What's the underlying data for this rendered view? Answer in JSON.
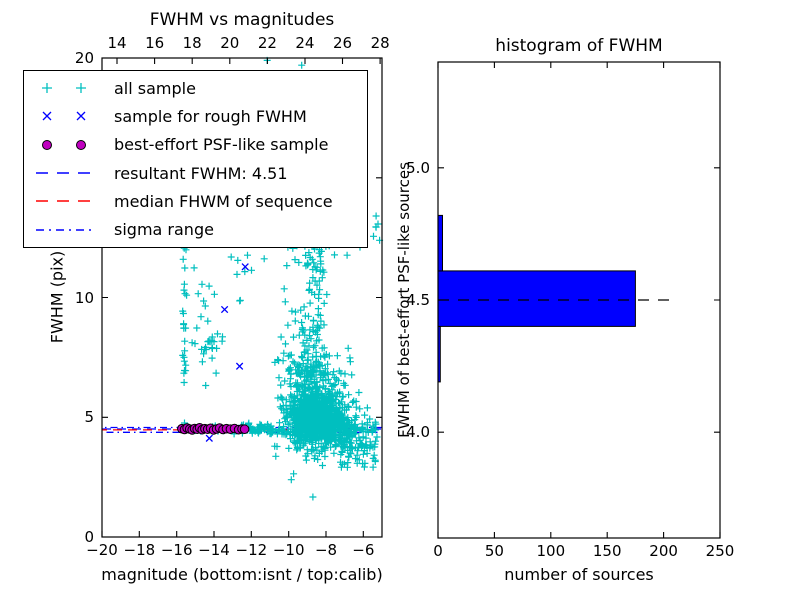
{
  "figure": {
    "background": "#ffffff"
  },
  "colors": {
    "all_sample": "#00bfbf",
    "rough_sample": "#0000ff",
    "psf_sample_fill": "#bf00bf",
    "psf_sample_edge": "#000000",
    "resultant_line": "#0000ff",
    "median_line": "#ff0000",
    "sigma_line": "#0000ff",
    "hist_fill": "#0000ff",
    "hist_edge": "#000000",
    "hist_median_line": "#000000",
    "axis": "#000000"
  },
  "left_plot": {
    "title": "FWHM vs magnitudes",
    "xlabel": "magnitude (bottom:isnt / top:calib)",
    "ylabel": "FWHM (pix)",
    "x_tick_labels": [
      "−20",
      "−18",
      "−16",
      "−14",
      "−12",
      "−10",
      "−8",
      "−6"
    ],
    "y_tick_labels": [
      "0",
      "5",
      "10",
      "15",
      "20"
    ],
    "top_tick_labels": [
      "14",
      "16",
      "18",
      "20",
      "22",
      "24",
      "26",
      "28"
    ]
  },
  "right_plot": {
    "title": "histogram of FWHM",
    "xlabel": "number of sources",
    "ylabel": "FWHM of best-effort PSF-like sources",
    "x_tick_labels": [
      "0",
      "50",
      "100",
      "150",
      "200",
      "250"
    ],
    "y_tick_labels": [
      "4.0",
      "4.5",
      "5.0"
    ]
  },
  "legend": {
    "entries": [
      {
        "label": "all sample",
        "marker": "plus",
        "color": "#00bfbf"
      },
      {
        "label": "sample for rough FWHM",
        "marker": "x",
        "color": "#0000ff"
      },
      {
        "label": "best-effort PSF-like sample",
        "marker": "circle",
        "color": "#bf00bf"
      },
      {
        "label": "resultant FWHM: 4.51",
        "marker": "dash",
        "color": "#0000ff"
      },
      {
        "label": "median FHWM of sequence",
        "marker": "dash",
        "color": "#ff0000"
      },
      {
        "label": "sigma range",
        "marker": "dashdot",
        "color": "#0000ff"
      }
    ]
  },
  "chart_data": [
    {
      "type": "scatter",
      "title": "FWHM vs magnitudes",
      "xlabel": "magnitude (bottom:isnt / top:calib)",
      "ylabel": "FWHM (pix)",
      "xlim": [
        -20,
        -5
      ],
      "ylim": [
        0,
        20
      ],
      "x_ticks": [
        -20,
        -18,
        -16,
        -14,
        -12,
        -10,
        -8,
        -6
      ],
      "y_ticks": [
        0,
        5,
        10,
        15,
        20
      ],
      "top_axis": {
        "lim": [
          13.2,
          28.1
        ],
        "ticks": [
          14,
          16,
          18,
          20,
          22,
          24,
          26,
          28
        ]
      },
      "series": [
        {
          "name": "all sample",
          "marker": "+",
          "color": "#00bfbf",
          "clusters": [
            {
              "n": 850,
              "mag": [
                "n",
                -8.55,
                0.75
              ],
              "fwhm": [
                "n",
                4.85,
                0.5
              ]
            },
            {
              "n": 240,
              "mag": [
                "n",
                -8.7,
                0.45
              ],
              "fwhm": [
                "pl",
                4.6,
                12.8,
                1.9
              ]
            },
            {
              "n": 160,
              "mag": [
                "n",
                -9.5,
                0.65
              ],
              "fwhm": [
                "n",
                6.1,
                1.5
              ]
            },
            {
              "n": 120,
              "mag": [
                "n",
                -7.9,
                0.6
              ],
              "fwhm": [
                "n",
                5.8,
                1.1
              ]
            },
            {
              "n": 140,
              "mag": [
                "u",
                -7.8,
                -5.25
              ],
              "fwhm": [
                "n",
                4.35,
                0.55
              ]
            },
            {
              "n": 45,
              "mag": [
                "u",
                -7.3,
                -5.3
              ],
              "fwhm": [
                "u",
                2.9,
                4.1
              ]
            },
            {
              "n": 70,
              "mag": [
                "u",
                -12.5,
                -10.2
              ],
              "fwhm": [
                "n",
                4.52,
                0.1
              ]
            },
            {
              "n": 26,
              "mag": [
                "u",
                -15.85,
                -12.4
              ],
              "fwhm": [
                "n",
                4.53,
                0.09
              ]
            },
            {
              "n": 15,
              "mag": [
                "n",
                -15.6,
                0.07
              ],
              "fwhm": [
                "u",
                4.9,
                12.2
              ]
            },
            {
              "n": 10,
              "mag": [
                "n",
                -15.58,
                0.09
              ],
              "fwhm": [
                "n",
                8.3,
                0.7
              ]
            },
            {
              "n": 26,
              "mag": [
                "n",
                -14.25,
                0.38
              ],
              "fwhm": [
                "n",
                8.4,
                0.75
              ]
            },
            {
              "n": 7,
              "mag": [
                "n",
                -14.55,
                0.28
              ],
              "fwhm": [
                "n",
                10.3,
                0.4
              ]
            },
            {
              "n": 9,
              "mag": [
                "u",
                -13.1,
                -11.3
              ],
              "fwhm": [
                "u",
                9.6,
                12.0
              ]
            },
            {
              "n": 6,
              "mag": [
                "u",
                -5.65,
                -5.1
              ],
              "fwhm": [
                "u",
                12.3,
                13.5
              ]
            },
            {
              "n": 24,
              "mag": [
                "n",
                -8.3,
                0.9
              ],
              "fwhm": [
                "u",
                11.0,
                13.3
              ]
            }
          ],
          "points": [
            [
              -11.15,
              19.9
            ],
            [
              -9.3,
              19.7
            ],
            [
              -8.7,
              1.67
            ]
          ]
        },
        {
          "name": "sample for rough FWHM",
          "marker": "x",
          "color": "#0000ff",
          "points": [
            [
              -12.33,
              11.28
            ],
            [
              -13.43,
              9.5
            ],
            [
              -12.63,
              7.13
            ],
            [
              -14.25,
              4.12
            ],
            [
              -15.6,
              4.5
            ],
            [
              -15.2,
              4.49
            ],
            [
              -14.9,
              4.56
            ],
            [
              -14.2,
              4.47
            ],
            [
              -13.55,
              4.53
            ],
            [
              -12.9,
              4.5
            ],
            [
              -12.45,
              4.52
            ]
          ]
        },
        {
          "name": "best-effort PSF-like sample",
          "marker": "o",
          "color": "#bf00bf",
          "points": [
            [
              -15.72,
              4.52
            ],
            [
              -15.58,
              4.49
            ],
            [
              -15.44,
              4.55
            ],
            [
              -15.3,
              4.51
            ],
            [
              -15.17,
              4.47
            ],
            [
              -15.04,
              4.53
            ],
            [
              -14.9,
              4.5
            ],
            [
              -14.77,
              4.56
            ],
            [
              -14.63,
              4.48
            ],
            [
              -14.49,
              4.52
            ],
            [
              -14.34,
              4.5
            ],
            [
              -14.18,
              4.54
            ],
            [
              -14.02,
              4.47
            ],
            [
              -13.86,
              4.51
            ],
            [
              -13.7,
              4.55
            ],
            [
              -13.52,
              4.49
            ],
            [
              -13.33,
              4.52
            ],
            [
              -13.12,
              4.5
            ],
            [
              -12.9,
              4.53
            ],
            [
              -12.68,
              4.48
            ],
            [
              -12.5,
              4.51
            ],
            [
              -12.36,
              4.5
            ]
          ]
        }
      ],
      "lines": [
        {
          "name": "resultant FWHM",
          "y": 4.51,
          "style": "dashed",
          "color": "#0000ff"
        },
        {
          "name": "median FHWM of sequence",
          "y": 4.47,
          "style": "dashed",
          "color": "#ff0000"
        },
        {
          "name": "sigma range upper",
          "y": 4.57,
          "style": "dashdot",
          "color": "#0000ff"
        },
        {
          "name": "sigma range lower",
          "y": 4.37,
          "style": "dashdot",
          "color": "#0000ff"
        }
      ]
    },
    {
      "type": "bar",
      "orientation": "horizontal",
      "title": "histogram of FWHM",
      "xlabel": "number of sources",
      "ylabel": "FWHM of best-effort PSF-like sources",
      "xlim": [
        0,
        250
      ],
      "ylim": [
        3.6,
        5.4
      ],
      "x_ticks": [
        0,
        50,
        100,
        150,
        200,
        250
      ],
      "y_ticks": [
        4.0,
        4.5,
        5.0
      ],
      "bins": [
        {
          "lo": 4.19,
          "hi": 4.4,
          "count": 2
        },
        {
          "lo": 4.4,
          "hi": 4.61,
          "count": 175
        },
        {
          "lo": 4.61,
          "hi": 4.82,
          "count": 4
        }
      ],
      "median_line": {
        "y": 4.5,
        "x_start": 0,
        "x_end": 210,
        "style": "dashed",
        "color": "#000000"
      }
    }
  ]
}
